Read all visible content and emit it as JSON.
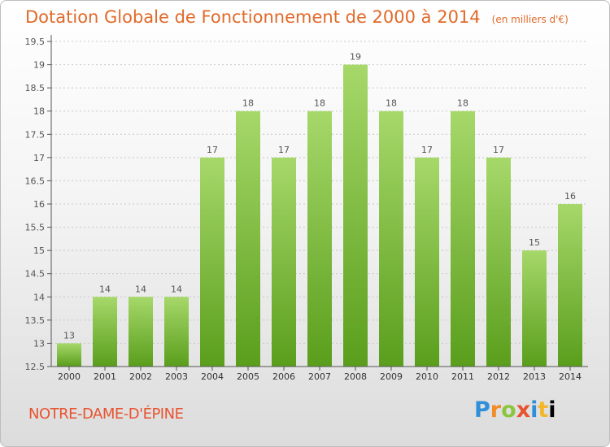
{
  "title": "Dotation Globale de Fonctionnement de 2000 à 2014",
  "subtitle": "(en milliers d'€)",
  "commune": "NOTRE-DAME-D'ÉPINE",
  "logo": [
    "P",
    "r",
    "o",
    "x",
    "i",
    "t",
    "i"
  ],
  "chart_data": {
    "type": "bar",
    "categories": [
      "2000",
      "2001",
      "2002",
      "2003",
      "2004",
      "2005",
      "2006",
      "2007",
      "2008",
      "2009",
      "2010",
      "2011",
      "2012",
      "2013",
      "2014"
    ],
    "values": [
      13,
      14,
      14,
      14,
      17,
      18,
      17,
      18,
      19,
      18,
      17,
      18,
      17,
      15,
      16
    ],
    "data_labels": [
      "13",
      "14",
      "14",
      "14",
      "17",
      "18",
      "17",
      "18",
      "19",
      "18",
      "17",
      "18",
      "17",
      "15",
      "16"
    ],
    "ylim": [
      12.5,
      19.5
    ],
    "yticks": [
      12.5,
      13,
      13.5,
      14,
      14.5,
      15,
      15.5,
      16,
      16.5,
      17,
      17.5,
      18,
      18.5,
      19,
      19.5
    ],
    "ytick_labels": [
      "12.5",
      "13",
      "13.5",
      "14",
      "14.5",
      "15",
      "15.5",
      "16",
      "16.5",
      "17",
      "17.5",
      "18",
      "18.5",
      "19",
      "19.5"
    ],
    "grid": "horizontal-dashed",
    "bar_color_top": "#a6d86a",
    "bar_color_bottom": "#5a9e1c",
    "axis_color": "#555555"
  }
}
